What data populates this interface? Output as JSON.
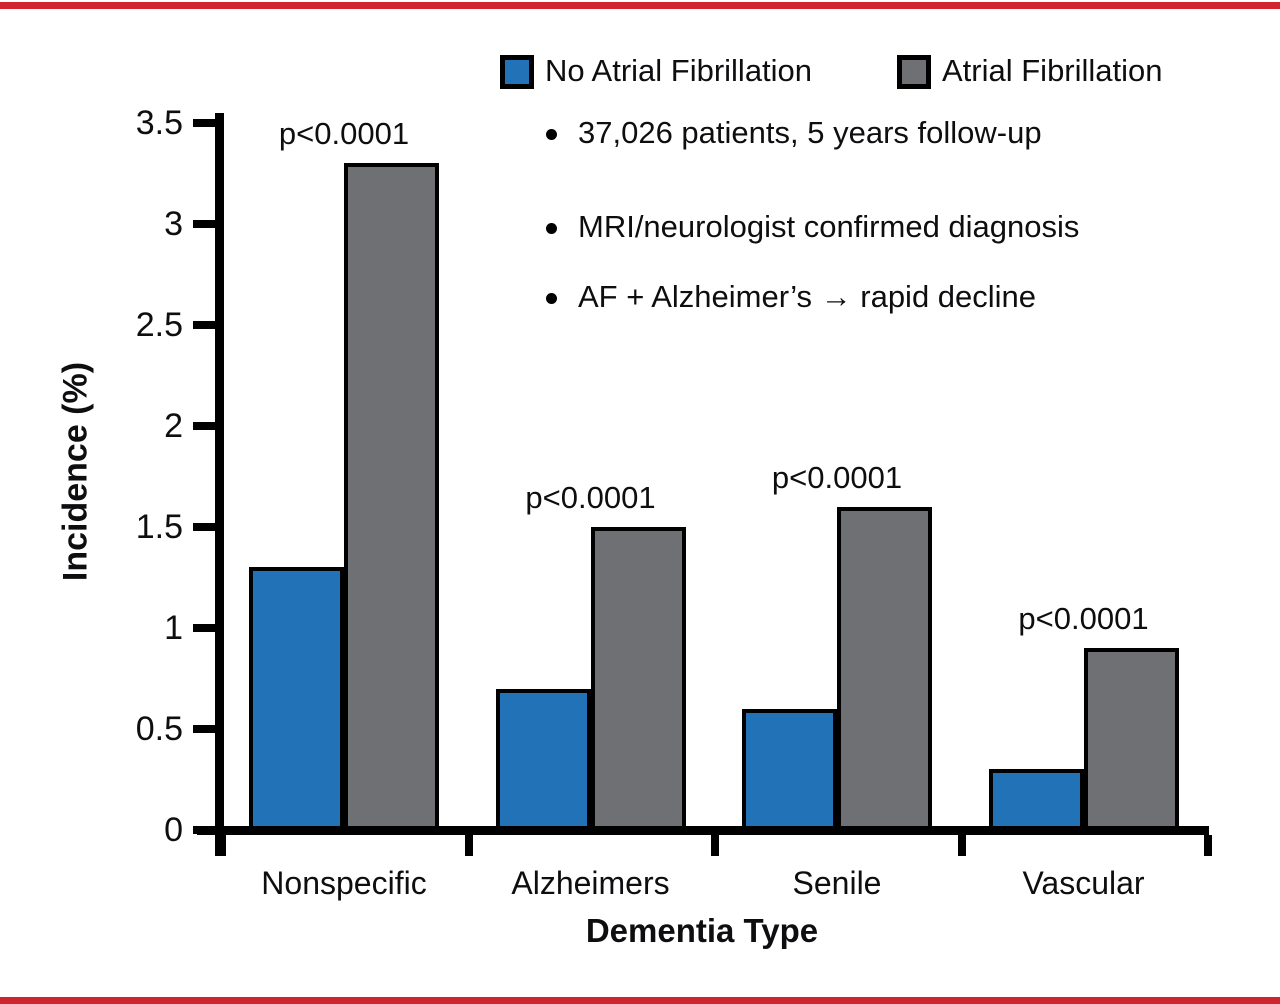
{
  "frame": {
    "color": "#d0242e"
  },
  "bullets": [
    "37,026 patients, 5 years follow-up",
    "MRI/neurologist confirmed diagnosis",
    "AF + Alzheimer’s → rapid decline"
  ],
  "chart_data": {
    "type": "bar",
    "title": "",
    "categories": [
      "Nonspecific",
      "Alzheimers",
      "Senile",
      "Vascular"
    ],
    "series": [
      {
        "name": "No Atrial Fibrillation",
        "color": "#2272b8",
        "values": [
          1.3,
          0.7,
          0.6,
          0.3
        ]
      },
      {
        "name": "Atrial Fibrillation",
        "color": "#6e7073",
        "values": [
          3.3,
          1.5,
          1.6,
          0.9
        ]
      }
    ],
    "annotations": [
      "p<0.0001",
      "p<0.0001",
      "p<0.0001",
      "p<0.0001"
    ],
    "xlabel": "Dementia Type",
    "ylabel": "Incidence (%)",
    "ylim": [
      0,
      3.5
    ],
    "yticks": [
      0,
      0.5,
      1,
      1.5,
      2,
      2.5,
      3,
      3.5
    ],
    "grid": false,
    "legend_position": "top",
    "axis_color": "#000000"
  }
}
